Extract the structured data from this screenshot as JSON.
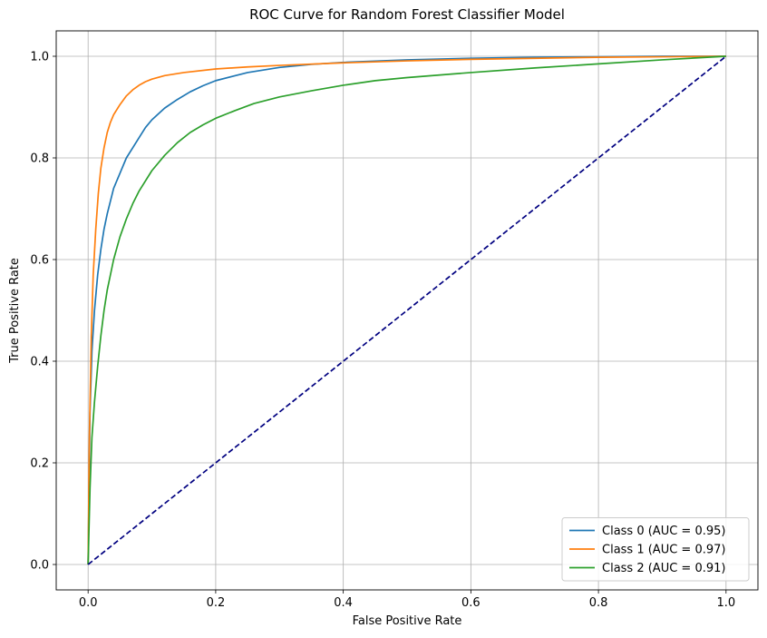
{
  "chart_data": {
    "type": "line",
    "title": "ROC Curve for Random Forest Classifier Model",
    "xlabel": "False Positive Rate",
    "ylabel": "True Positive Rate",
    "xlim": [
      -0.05,
      1.05
    ],
    "ylim": [
      -0.05,
      1.05
    ],
    "xticks": [
      "0.0",
      "0.2",
      "0.4",
      "0.6",
      "0.8",
      "1.0"
    ],
    "yticks": [
      "0.0",
      "0.2",
      "0.4",
      "0.6",
      "0.8",
      "1.0"
    ],
    "grid": true,
    "legend_position": "lower-right",
    "series": [
      {
        "name": "Class 0 (AUC = 0.95)",
        "color": "#1f77b4",
        "x": [
          0,
          0.003,
          0.006,
          0.01,
          0.015,
          0.02,
          0.025,
          0.03,
          0.04,
          0.05,
          0.06,
          0.07,
          0.08,
          0.09,
          0.1,
          0.12,
          0.14,
          0.16,
          0.18,
          0.2,
          0.25,
          0.3,
          0.35,
          0.4,
          0.5,
          0.6,
          0.7,
          0.8,
          0.9,
          1.0
        ],
        "y": [
          0,
          0.3,
          0.42,
          0.5,
          0.57,
          0.62,
          0.66,
          0.69,
          0.74,
          0.77,
          0.8,
          0.82,
          0.84,
          0.86,
          0.875,
          0.898,
          0.915,
          0.93,
          0.942,
          0.952,
          0.968,
          0.978,
          0.984,
          0.988,
          0.993,
          0.996,
          0.998,
          0.999,
          1.0,
          1.0
        ]
      },
      {
        "name": "Class 1 (AUC = 0.97)",
        "color": "#ff7f0e",
        "x": [
          0,
          0.002,
          0.005,
          0.008,
          0.012,
          0.016,
          0.02,
          0.025,
          0.03,
          0.035,
          0.04,
          0.05,
          0.06,
          0.07,
          0.08,
          0.09,
          0.1,
          0.12,
          0.15,
          0.2,
          0.25,
          0.3,
          0.4,
          0.5,
          0.6,
          0.7,
          0.8,
          0.9,
          1.0
        ],
        "y": [
          0,
          0.25,
          0.45,
          0.57,
          0.66,
          0.73,
          0.78,
          0.82,
          0.85,
          0.87,
          0.885,
          0.905,
          0.922,
          0.934,
          0.943,
          0.95,
          0.955,
          0.962,
          0.968,
          0.975,
          0.979,
          0.982,
          0.987,
          0.991,
          0.994,
          0.996,
          0.998,
          0.999,
          1.0
        ]
      },
      {
        "name": "Class 2 (AUC = 0.91)",
        "color": "#2ca02c",
        "x": [
          0,
          0.003,
          0.006,
          0.01,
          0.015,
          0.02,
          0.025,
          0.03,
          0.04,
          0.05,
          0.06,
          0.07,
          0.08,
          0.1,
          0.12,
          0.14,
          0.16,
          0.18,
          0.2,
          0.23,
          0.26,
          0.3,
          0.35,
          0.4,
          0.45,
          0.5,
          0.6,
          0.7,
          0.8,
          0.9,
          1.0
        ],
        "y": [
          0,
          0.15,
          0.25,
          0.32,
          0.39,
          0.45,
          0.5,
          0.54,
          0.6,
          0.645,
          0.68,
          0.71,
          0.735,
          0.775,
          0.805,
          0.83,
          0.85,
          0.865,
          0.878,
          0.893,
          0.907,
          0.92,
          0.932,
          0.943,
          0.952,
          0.958,
          0.968,
          0.977,
          0.985,
          0.993,
          1.0
        ]
      },
      {
        "name": "",
        "color": "#000080",
        "dashed": true,
        "x": [
          0,
          1
        ],
        "y": [
          0,
          1
        ]
      }
    ]
  }
}
